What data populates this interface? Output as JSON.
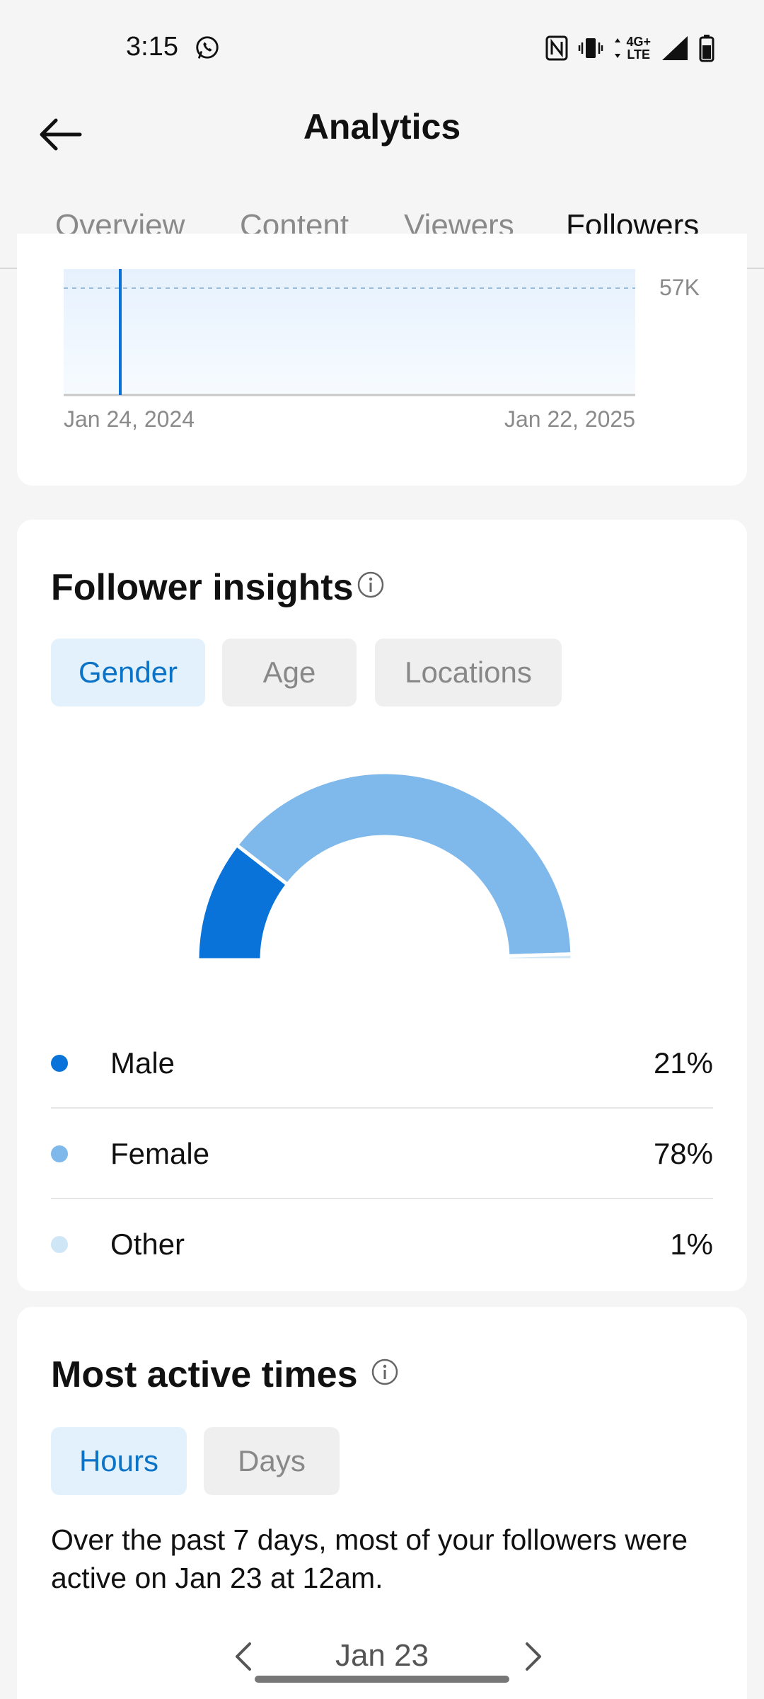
{
  "status": {
    "time": "3:15",
    "network": "4G+",
    "network_sub": "LTE",
    "icons": [
      "whatsapp-icon",
      "nfc-icon",
      "vibrate-icon",
      "data-arrows-icon",
      "signal-icon",
      "battery-icon"
    ]
  },
  "header": {
    "title": "Analytics",
    "back_icon": "arrow-left-icon"
  },
  "tabs": [
    {
      "label": "Overview",
      "active": false
    },
    {
      "label": "Content",
      "active": false
    },
    {
      "label": "Viewers",
      "active": false
    },
    {
      "label": "Followers",
      "active": true
    }
  ],
  "followers_chart": {
    "y_label": "57K",
    "x_start": "Jan 24, 2024",
    "x_end": "Jan 22, 2025"
  },
  "insights": {
    "title": "Follower insights",
    "chips": [
      {
        "label": "Gender",
        "active": true
      },
      {
        "label": "Age",
        "active": false
      },
      {
        "label": "Locations",
        "active": false
      }
    ],
    "legend": [
      {
        "label": "Male",
        "value": "21%",
        "color": "#0a73d9"
      },
      {
        "label": "Female",
        "value": "78%",
        "color": "#7fb8ea"
      },
      {
        "label": "Other",
        "value": "1%",
        "color": "#cfe6f7"
      }
    ]
  },
  "chart_data": {
    "type": "pie",
    "categories": [
      "Male",
      "Female",
      "Other"
    ],
    "values": [
      21,
      78,
      1
    ],
    "colors": [
      "#0a73d9",
      "#7fb8ea",
      "#cfe6f7"
    ]
  },
  "active_times": {
    "title": "Most active times",
    "chips": [
      {
        "label": "Hours",
        "active": true
      },
      {
        "label": "Days",
        "active": false
      }
    ],
    "description": "Over the past 7 days, most of your followers were active on Jan 23 at 12am.",
    "date": "Jan 23"
  },
  "colors": {
    "accent": "#0a73c8",
    "chip_active_bg": "#e2f1fb",
    "chip_bg": "#efefef"
  }
}
